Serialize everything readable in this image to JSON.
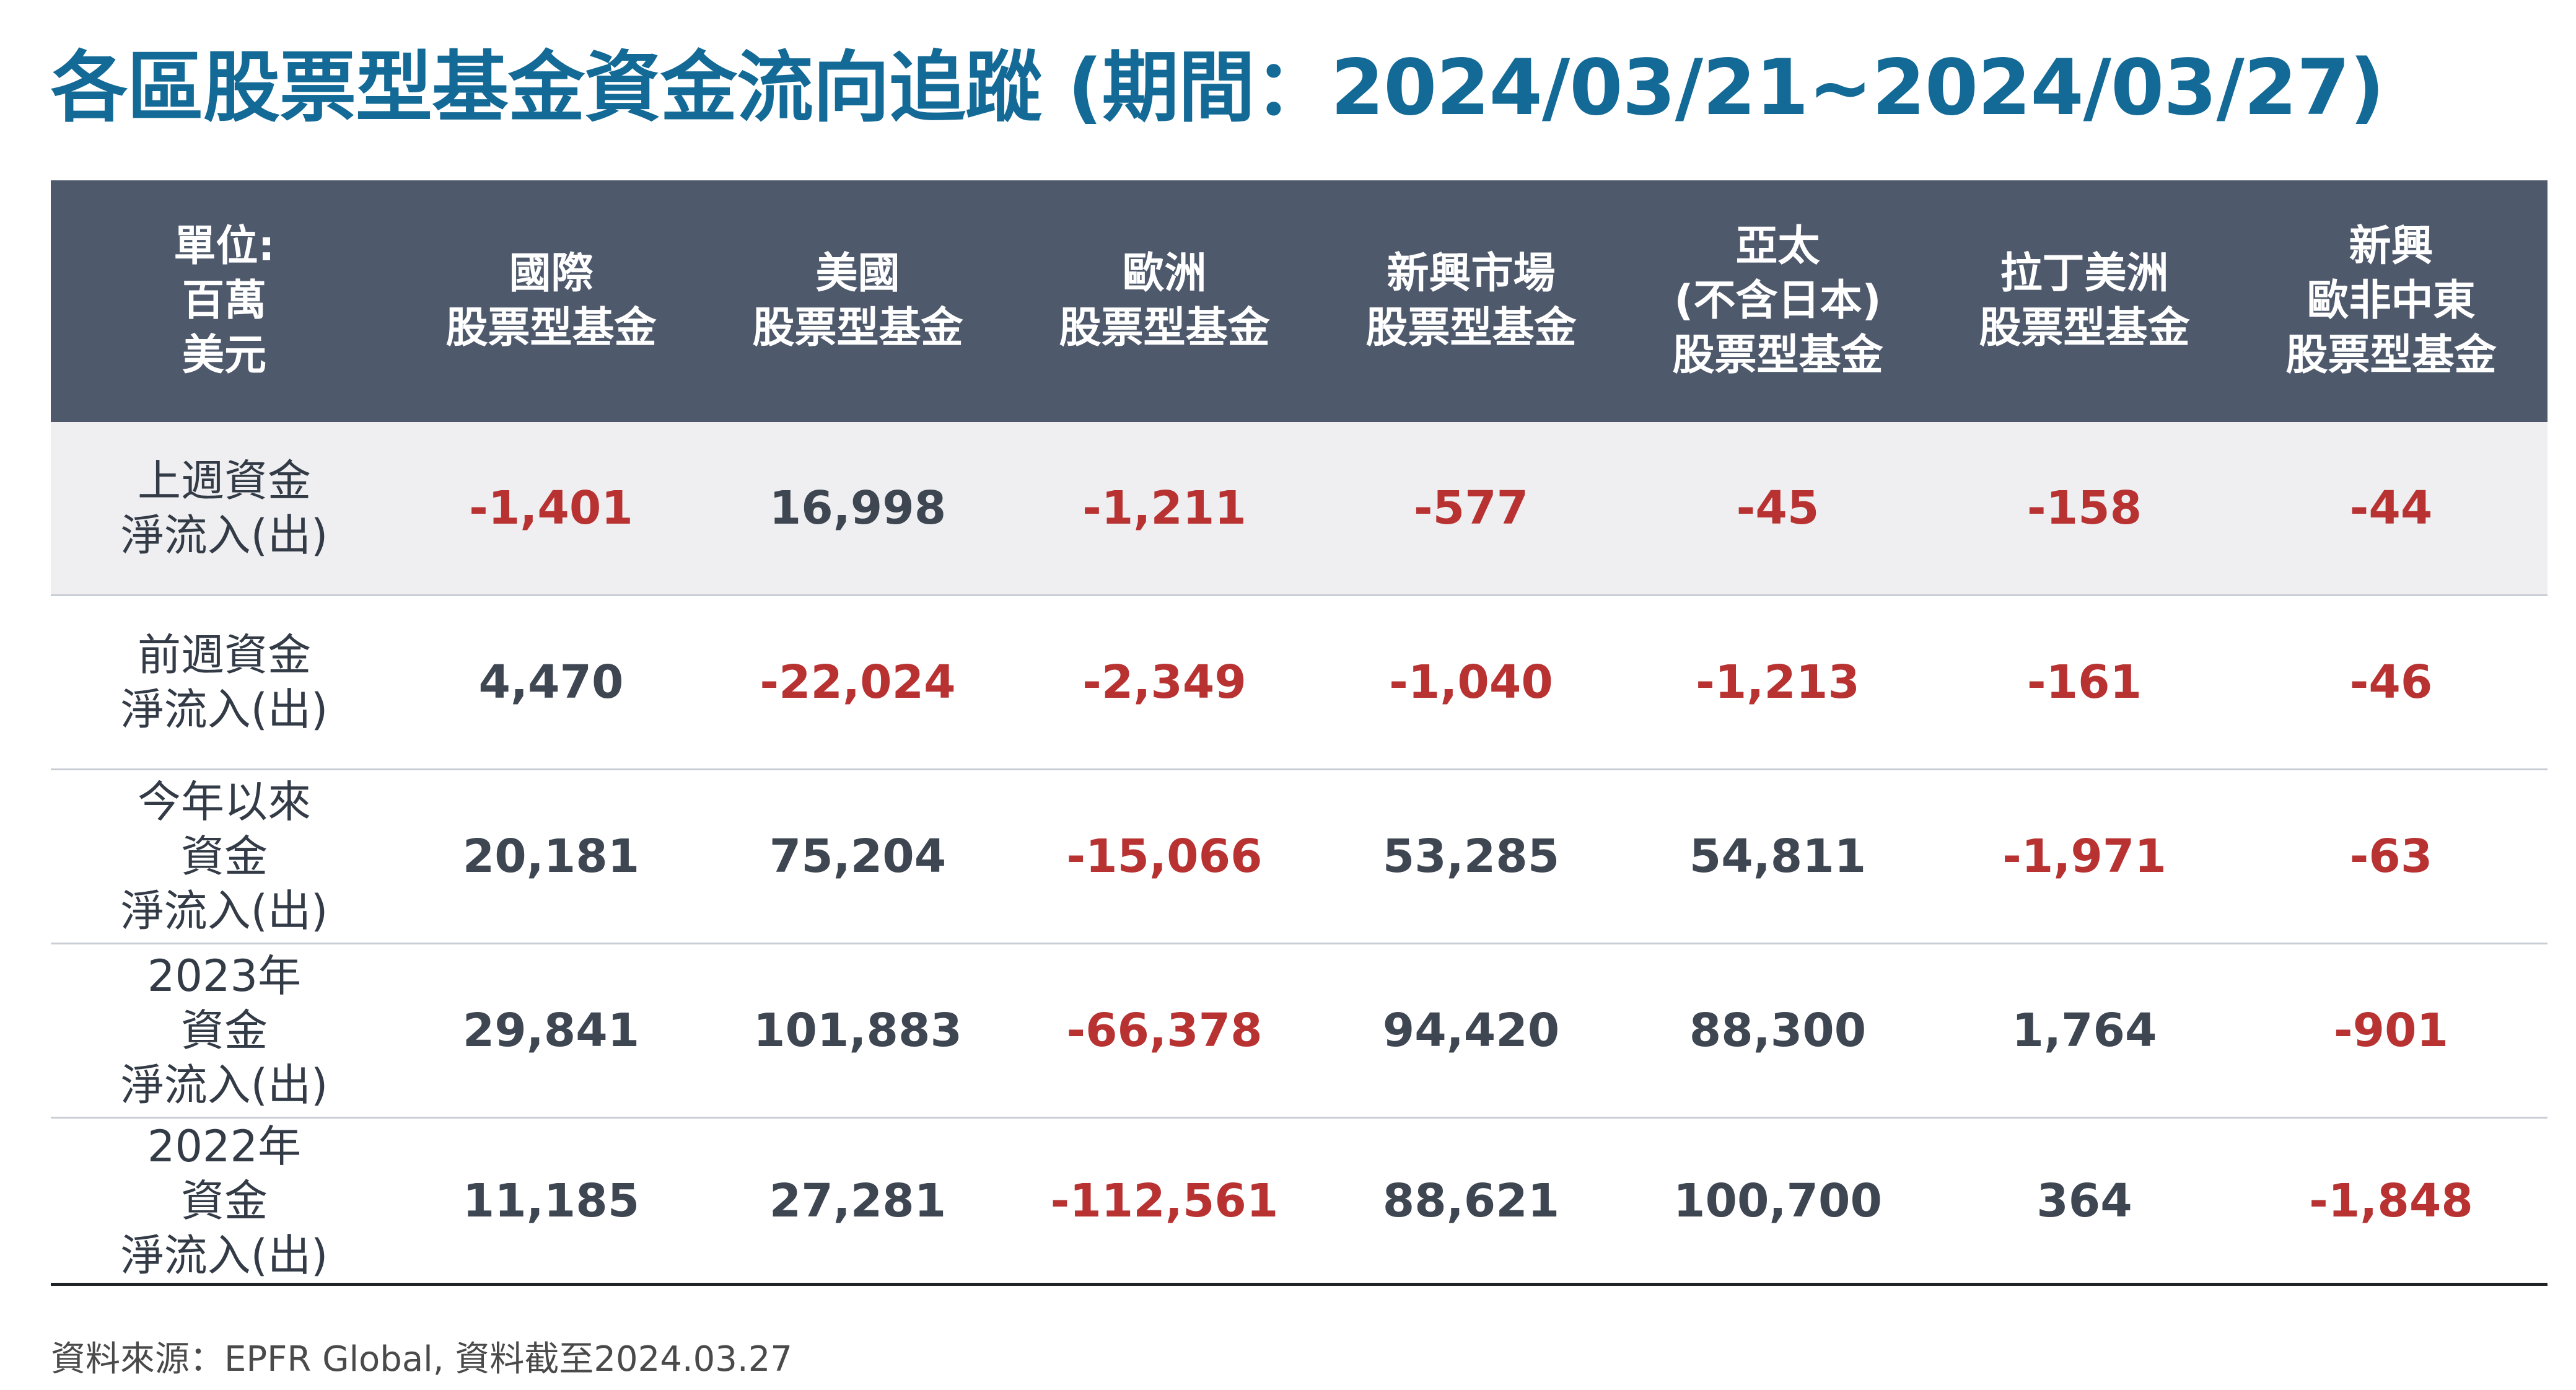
{
  "title": "各區股票型基金資金流向追蹤 (期間：2024/03/21~2024/03/27)",
  "table": {
    "corner_header": "單位:\n百萬\n美元",
    "columns": [
      "國際\n股票型基金",
      "美國\n股票型基金",
      "歐洲\n股票型基金",
      "新興市場\n股票型基金",
      "亞太\n(不含日本)\n股票型基金",
      "拉丁美洲\n股票型基金",
      "新興\n歐非中東\n股票型基金"
    ],
    "rows": [
      {
        "label": "上週資金\n淨流入(出)",
        "values": [
          "-1,401",
          "16,998",
          "-1,211",
          "-577",
          "-45",
          "-158",
          "-44"
        ],
        "signs": [
          "neg",
          "pos",
          "neg",
          "neg",
          "neg",
          "neg",
          "neg"
        ]
      },
      {
        "label": "前週資金\n淨流入(出)",
        "values": [
          "4,470",
          "-22,024",
          "-2,349",
          "-1,040",
          "-1,213",
          "-161",
          "-46"
        ],
        "signs": [
          "pos",
          "neg",
          "neg",
          "neg",
          "neg",
          "neg",
          "neg"
        ]
      },
      {
        "label": "今年以來\n資金\n淨流入(出)",
        "values": [
          "20,181",
          "75,204",
          "-15,066",
          "53,285",
          "54,811",
          "-1,971",
          "-63"
        ],
        "signs": [
          "pos",
          "pos",
          "neg",
          "pos",
          "pos",
          "neg",
          "neg"
        ]
      },
      {
        "label": "2023年\n資金\n淨流入(出)",
        "values": [
          "29,841",
          "101,883",
          "-66,378",
          "94,420",
          "88,300",
          "1,764",
          "-901"
        ],
        "signs": [
          "pos",
          "pos",
          "neg",
          "pos",
          "pos",
          "pos",
          "neg"
        ]
      },
      {
        "label": "2022年\n資金\n淨流入(出)",
        "values": [
          "11,185",
          "27,281",
          "-112,561",
          "88,621",
          "100,700",
          "364",
          "-1,848"
        ],
        "signs": [
          "pos",
          "pos",
          "neg",
          "pos",
          "pos",
          "pos",
          "neg"
        ]
      }
    ]
  },
  "source": "資料來源：EPFR Global, 資料截至2024.03.27",
  "colors": {
    "title": "#136a96",
    "header_bg": "#4e596c",
    "negative": "#b83232",
    "positive": "#3e4652",
    "shaded_row": "#efeff1"
  }
}
